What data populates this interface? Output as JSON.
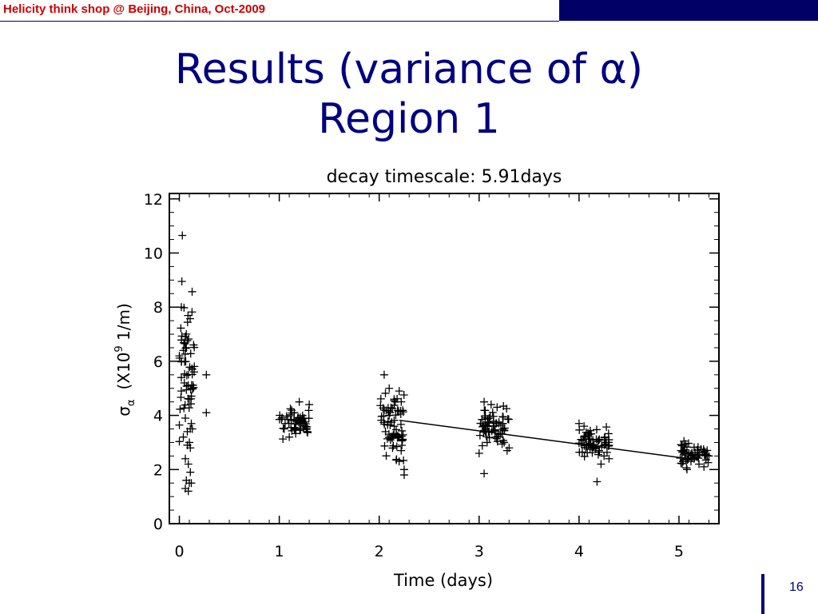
{
  "header": {
    "text": "Helicity think shop @ Beijing, China,  Oct-2009",
    "accent_color": "#000066",
    "text_color": "#cc0000"
  },
  "slide": {
    "title_line1": "Results (variance of α)",
    "title_line2": "Region 1",
    "title_color": "#000080",
    "page_number": "16"
  },
  "chart_data": {
    "type": "scatter",
    "title": "decay timescale: 5.91days",
    "xlabel": "Time (days)",
    "ylabel_parts": [
      "σ",
      "α",
      "(X10",
      "9",
      " 1/m)"
    ],
    "xlim": [
      -0.1,
      5.4
    ],
    "ylim": [
      0,
      12.2
    ],
    "xticks": [
      0,
      1,
      2,
      3,
      4,
      5
    ],
    "yticks": [
      0,
      2,
      4,
      6,
      8,
      10,
      12
    ],
    "marker": "+",
    "fit_line": {
      "x": [
        2.2,
        5.2
      ],
      "y": [
        3.82,
        2.35
      ]
    },
    "clusters": [
      {
        "x": [
          0.0,
          0.15
        ],
        "y": [
          1.1,
          10.6
        ],
        "n": 55
      },
      {
        "x": [
          1.0,
          1.3
        ],
        "y": [
          3.0,
          4.5
        ],
        "n": 55
      },
      {
        "x": [
          2.0,
          2.25
        ],
        "y": [
          1.8,
          5.5
        ],
        "n": 65
      },
      {
        "x": [
          3.0,
          3.3
        ],
        "y": [
          2.6,
          4.6
        ],
        "n": 60
      },
      {
        "x": [
          4.0,
          4.3
        ],
        "y": [
          2.3,
          3.8
        ],
        "n": 55
      },
      {
        "x": [
          5.0,
          5.3
        ],
        "y": [
          2.0,
          3.1
        ],
        "n": 50
      }
    ],
    "points": [
      [
        0.03,
        10.65
      ],
      [
        0.02,
        8.0
      ],
      [
        0.27,
        5.5
      ],
      [
        0.27,
        4.1
      ],
      [
        0.0,
        6.2
      ],
      [
        0.04,
        6.4
      ],
      [
        0.07,
        6.5
      ],
      [
        0.02,
        5.4
      ],
      [
        0.05,
        5.2
      ],
      [
        0.02,
        4.9
      ],
      [
        0.1,
        4.6
      ],
      [
        0.06,
        3.9
      ],
      [
        0.12,
        3.7
      ],
      [
        0.1,
        3.0
      ],
      [
        0.08,
        2.9
      ],
      [
        0.11,
        2.8
      ],
      [
        0.06,
        2.4
      ],
      [
        0.09,
        2.2
      ],
      [
        0.07,
        1.6
      ],
      [
        0.1,
        1.5
      ],
      [
        0.06,
        1.3
      ],
      [
        0.09,
        1.2
      ],
      [
        0.12,
        1.5
      ],
      [
        0.04,
        3.2
      ],
      [
        0.13,
        3.5
      ],
      [
        0.02,
        6.0
      ],
      [
        0.08,
        3.4
      ],
      [
        0.11,
        1.9
      ],
      [
        1.2,
        4.5
      ],
      [
        1.3,
        4.4
      ],
      [
        1.1,
        3.2
      ],
      [
        1.05,
        3.5
      ],
      [
        1.15,
        4.1
      ],
      [
        1.25,
        3.9
      ],
      [
        2.05,
        5.5
      ],
      [
        2.1,
        5.0
      ],
      [
        2.2,
        4.9
      ],
      [
        2.15,
        4.6
      ],
      [
        2.05,
        4.2
      ],
      [
        2.1,
        4.0
      ],
      [
        2.2,
        3.2
      ],
      [
        2.22,
        2.7
      ],
      [
        2.25,
        2.0
      ],
      [
        2.2,
        2.3
      ],
      [
        2.25,
        1.8
      ],
      [
        2.15,
        3.6
      ],
      [
        3.05,
        4.5
      ],
      [
        3.12,
        4.4
      ],
      [
        3.18,
        4.3
      ],
      [
        3.05,
        1.85
      ],
      [
        3.1,
        3.9
      ],
      [
        3.2,
        3.3
      ],
      [
        3.25,
        3.0
      ],
      [
        3.3,
        2.8
      ],
      [
        3.08,
        3.0
      ],
      [
        3.15,
        3.6
      ],
      [
        3.28,
        2.7
      ],
      [
        3.0,
        2.6
      ],
      [
        4.0,
        3.7
      ],
      [
        4.05,
        3.6
      ],
      [
        4.1,
        3.3
      ],
      [
        4.15,
        2.9
      ],
      [
        4.2,
        2.7
      ],
      [
        4.25,
        2.5
      ],
      [
        4.18,
        1.55
      ],
      [
        4.3,
        2.4
      ],
      [
        4.3,
        3.1
      ],
      [
        4.05,
        3.2
      ],
      [
        4.22,
        2.2
      ],
      [
        5.05,
        3.05
      ],
      [
        5.1,
        2.6
      ],
      [
        5.15,
        2.4
      ],
      [
        5.2,
        2.2
      ],
      [
        5.25,
        2.1
      ],
      [
        5.3,
        2.5
      ],
      [
        5.08,
        2.0
      ],
      [
        5.22,
        2.75
      ],
      [
        5.12,
        2.3
      ],
      [
        5.27,
        2.35
      ],
      [
        5.02,
        2.7
      ]
    ]
  }
}
